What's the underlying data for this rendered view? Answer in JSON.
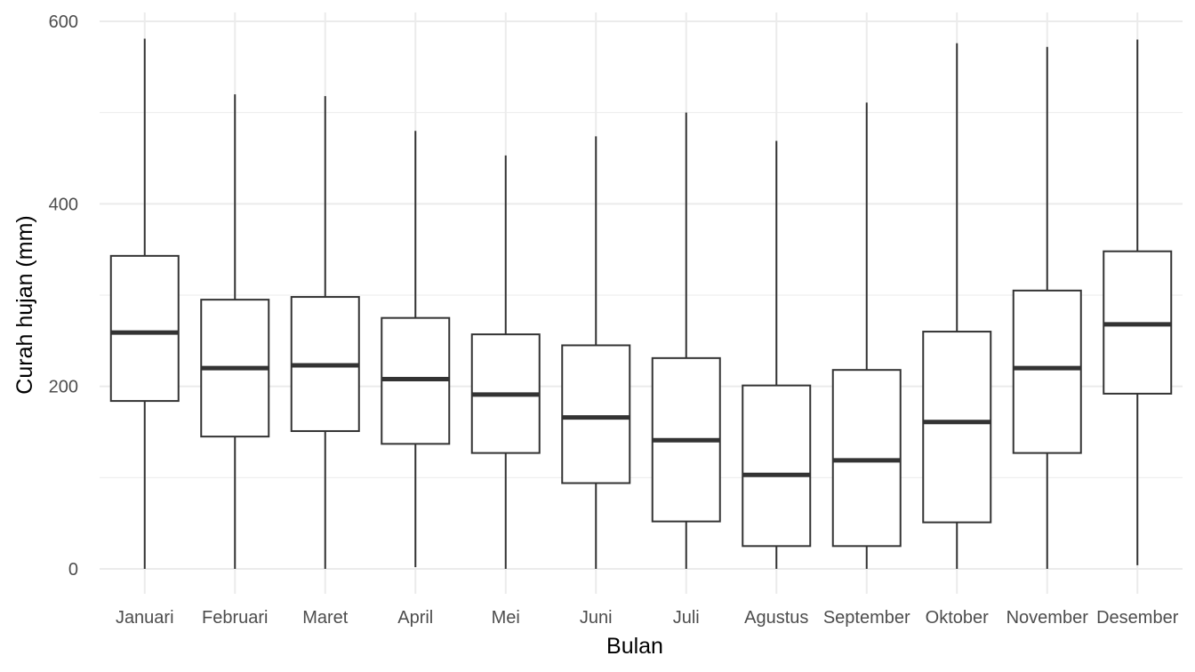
{
  "chart_data": {
    "type": "boxplot",
    "xlabel": "Bulan",
    "ylabel": "Curah hujan (mm)",
    "ylim": [
      -25,
      610
    ],
    "yticks": [
      0,
      200,
      400,
      600
    ],
    "grid": true,
    "categories": [
      "Januari",
      "Februari",
      "Maret",
      "April",
      "Mei",
      "Juni",
      "Juli",
      "Agustus",
      "September",
      "Oktober",
      "November",
      "Desember"
    ],
    "boxes": [
      {
        "min": 0,
        "q1": 184,
        "median": 259,
        "q3": 343,
        "max": 581
      },
      {
        "min": 0,
        "q1": 145,
        "median": 220,
        "q3": 295,
        "max": 520
      },
      {
        "min": 0,
        "q1": 151,
        "median": 223,
        "q3": 298,
        "max": 518
      },
      {
        "min": 2,
        "q1": 137,
        "median": 208,
        "q3": 275,
        "max": 480
      },
      {
        "min": 0,
        "q1": 127,
        "median": 191,
        "q3": 257,
        "max": 453
      },
      {
        "min": 0,
        "q1": 94,
        "median": 166,
        "q3": 245,
        "max": 474
      },
      {
        "min": 0,
        "q1": 52,
        "median": 141,
        "q3": 231,
        "max": 500
      },
      {
        "min": 0,
        "q1": 25,
        "median": 103,
        "q3": 201,
        "max": 469
      },
      {
        "min": 0,
        "q1": 25,
        "median": 119,
        "q3": 218,
        "max": 511
      },
      {
        "min": 0,
        "q1": 51,
        "median": 161,
        "q3": 260,
        "max": 576
      },
      {
        "min": 0,
        "q1": 127,
        "median": 220,
        "q3": 305,
        "max": 572
      },
      {
        "min": 4,
        "q1": 192,
        "median": 268,
        "q3": 348,
        "max": 580
      }
    ],
    "colors": {
      "box_stroke": "#333333",
      "grid": "#ebebeb",
      "tick_text": "#4d4d4d",
      "title_text": "#000000"
    }
  }
}
